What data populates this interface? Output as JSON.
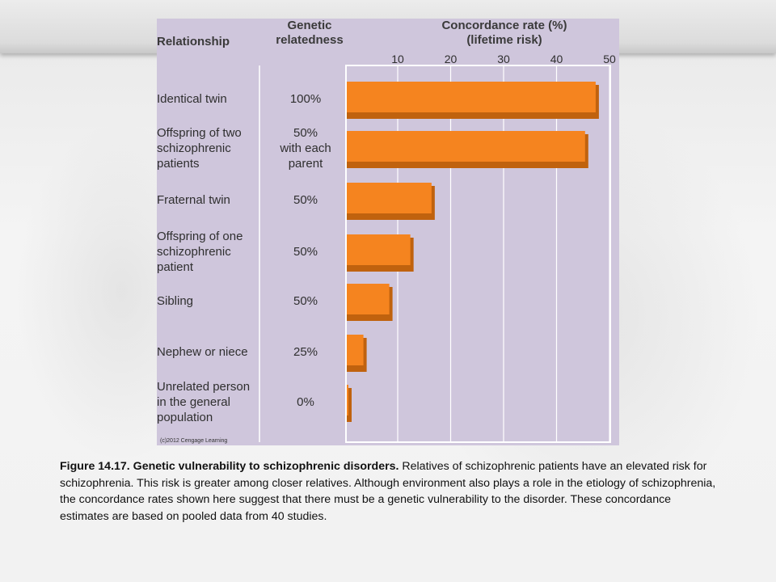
{
  "chart_data": {
    "type": "bar",
    "orientation": "horizontal",
    "headers": {
      "relationship": "Relationship",
      "relatedness": [
        "Genetic",
        "relatedness"
      ],
      "rate": [
        "Concordance rate (%)",
        "(lifetime risk)"
      ]
    },
    "xticks": [
      "10",
      "20",
      "30",
      "40",
      "50"
    ],
    "xlim": [
      0,
      50
    ],
    "rows": [
      {
        "relationship": [
          "Identical twin"
        ],
        "relatedness": [
          "100%"
        ],
        "value": 48
      },
      {
        "relationship": [
          "Offspring of two",
          "schizophrenic",
          "patients"
        ],
        "relatedness": [
          "50%",
          "with each",
          "parent"
        ],
        "value": 46
      },
      {
        "relationship": [
          "Fraternal twin"
        ],
        "relatedness": [
          "50%"
        ],
        "value": 17
      },
      {
        "relationship": [
          "Offspring of one",
          "schizophrenic",
          "patient"
        ],
        "relatedness": [
          "50%"
        ],
        "value": 13
      },
      {
        "relationship": [
          "Sibling"
        ],
        "relatedness": [
          "50%"
        ],
        "value": 9
      },
      {
        "relationship": [
          "Nephew or niece"
        ],
        "relatedness": [
          "25%"
        ],
        "value": 4
      },
      {
        "relationship": [
          "Unrelated person",
          "in the general",
          "population"
        ],
        "relatedness": [
          "0%"
        ],
        "value": 1
      }
    ],
    "bar_color": "#f5841f",
    "bar_shadow_color": "#c0620e",
    "grid": true
  },
  "copyright": "(c)2012 Cengage Learning",
  "caption": {
    "lead": "Figure 14.17.  Genetic vulnerability to schizophrenic  disorders.",
    "body": " Relatives of schizophrenic patients have an elevated risk for schizophrenia.  This risk is greater among  closer relatives. Although environment also plays a role in the etiology of schizophrenia, the concordance  rates shown here suggest that there must be a genetic vulnerability to the disorder. These concordance  estimates are based on pooled data from 40 studies."
  }
}
